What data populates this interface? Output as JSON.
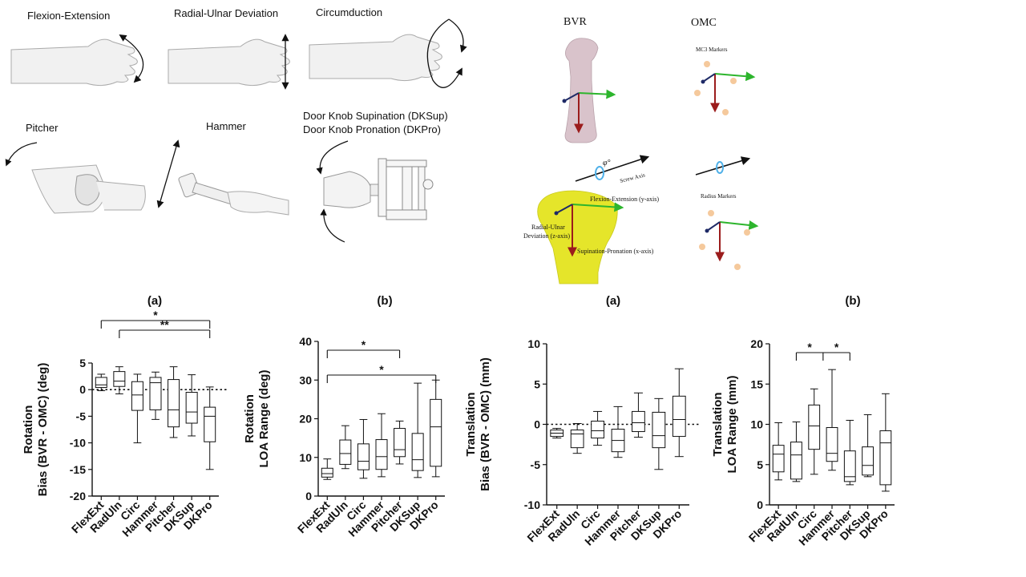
{
  "motions": {
    "flexext": "Flexion-Extension",
    "radul": "Radial-Ulnar Deviation",
    "circ": "Circumduction",
    "pitcher": "Pitcher",
    "hammer": "Hammer",
    "dk_line1": "Door Knob Supination (DKSup)",
    "dk_line2": "Door Knob Pronation (DKPro)"
  },
  "diagram": {
    "bvr": "BVR",
    "omc": "OMC",
    "mc3": "MC3 Markers",
    "radius_markers": "Radius Markers",
    "phi": "φ°",
    "screw_axis": "Screw Axis",
    "flex_axis": "Flexion-Extension (y-axis)",
    "radul_axis_1": "Radial-Ulnar",
    "radul_axis_2": "Deviation (z-axis)",
    "sup_axis": "Supination-Pronation (x-axis)",
    "colors": {
      "bone_mc3": "#d9c3cb",
      "bone_radius": "#e5e52a",
      "marker": "#f5c99c",
      "axis_x": "#9b1c1c",
      "axis_y": "#2db52d",
      "axis_z": "#1e2a66",
      "screw": "#4fb0e8"
    }
  },
  "chart_data": [
    {
      "type": "box",
      "panel": "(a)",
      "ylabel": [
        "Rotation",
        "Bias (BVR - OMC) (deg)"
      ],
      "categories": [
        "FlexExt",
        "RadUln",
        "Circ",
        "Hammer",
        "Pitcher",
        "DKSup",
        "DKPro"
      ],
      "ylim": [
        -20,
        5
      ],
      "yticks": [
        -20,
        -15,
        -10,
        -5,
        0,
        5
      ],
      "reference_line": 0,
      "boxes": [
        {
          "min": -0.2,
          "q1": 0.4,
          "median": 0.9,
          "q3": 2.3,
          "max": 2.9
        },
        {
          "min": -0.8,
          "q1": 0.6,
          "median": 1.6,
          "q3": 3.4,
          "max": 4.3
        },
        {
          "min": -10.0,
          "q1": -3.9,
          "median": -1.0,
          "q3": 1.5,
          "max": 2.9
        },
        {
          "min": -5.6,
          "q1": -3.8,
          "median": 1.3,
          "q3": 2.3,
          "max": 3.3
        },
        {
          "min": -9.0,
          "q1": -7.0,
          "median": -3.8,
          "q3": 1.9,
          "max": 4.3
        },
        {
          "min": -8.7,
          "q1": -6.3,
          "median": -4.2,
          "q3": -0.5,
          "max": 2.8
        },
        {
          "min": -15.0,
          "q1": -9.8,
          "median": -5.0,
          "q3": -3.3,
          "max": 0.5
        }
      ],
      "significance": [
        {
          "from": 0,
          "to": 6,
          "label": "*"
        },
        {
          "from": 1,
          "to": 6,
          "label": "**"
        }
      ]
    },
    {
      "type": "box",
      "panel": "(b)",
      "ylabel": [
        "Rotation",
        "LOA Range (deg)"
      ],
      "categories": [
        "FlexExt",
        "RadUln",
        "Circ",
        "Hammer",
        "Pitcher",
        "DKSup",
        "DKPro"
      ],
      "ylim": [
        0,
        40
      ],
      "yticks": [
        0,
        10,
        20,
        30,
        40
      ],
      "boxes": [
        {
          "min": 4.3,
          "q1": 4.9,
          "median": 5.8,
          "q3": 7.2,
          "max": 9.6
        },
        {
          "min": 7.1,
          "q1": 8.2,
          "median": 11.0,
          "q3": 14.5,
          "max": 18.2
        },
        {
          "min": 4.6,
          "q1": 6.8,
          "median": 9.0,
          "q3": 13.5,
          "max": 19.8
        },
        {
          "min": 5.0,
          "q1": 6.9,
          "median": 10.2,
          "q3": 14.6,
          "max": 21.3
        },
        {
          "min": 8.3,
          "q1": 10.2,
          "median": 12.0,
          "q3": 17.5,
          "max": 19.4
        },
        {
          "min": 4.8,
          "q1": 6.6,
          "median": 9.4,
          "q3": 16.2,
          "max": 29.2
        },
        {
          "min": 5.0,
          "q1": 7.7,
          "median": 17.9,
          "q3": 25.0,
          "max": 30.0
        }
      ],
      "significance": [
        {
          "from": 0,
          "to": 4,
          "label": "*"
        },
        {
          "from": 0,
          "to": 6,
          "label": "*"
        }
      ]
    },
    {
      "type": "box",
      "panel": "(a)",
      "ylabel": [
        "Translation",
        "Bias (BVR - OMC) (mm)"
      ],
      "categories": [
        "FlexExt",
        "RadUln",
        "Circ",
        "Hammer",
        "Pitcher",
        "DKSup",
        "DKPro"
      ],
      "ylim": [
        -10,
        10
      ],
      "yticks": [
        -10,
        -5,
        0,
        5,
        10
      ],
      "reference_line": 0,
      "boxes": [
        {
          "min": -1.7,
          "q1": -1.5,
          "median": -1.1,
          "q3": -0.7,
          "max": -0.5
        },
        {
          "min": -3.6,
          "q1": -2.9,
          "median": -1.2,
          "q3": -0.7,
          "max": 0.1
        },
        {
          "min": -2.6,
          "q1": -1.7,
          "median": -0.8,
          "q3": 0.4,
          "max": 1.6
        },
        {
          "min": -4.1,
          "q1": -3.4,
          "median": -2.0,
          "q3": -0.6,
          "max": 2.2
        },
        {
          "min": -1.6,
          "q1": -0.9,
          "median": 0.2,
          "q3": 1.6,
          "max": 3.9
        },
        {
          "min": -5.6,
          "q1": -2.9,
          "median": -1.4,
          "q3": 1.5,
          "max": 3.2
        },
        {
          "min": -4.0,
          "q1": -1.5,
          "median": 0.6,
          "q3": 3.5,
          "max": 6.9
        }
      ]
    },
    {
      "type": "box",
      "panel": "(b)",
      "ylabel": [
        "Translation",
        "LOA Range (mm)"
      ],
      "categories": [
        "FlexExt",
        "RadUln",
        "Circ",
        "Hammer",
        "Pitcher",
        "DKSup",
        "DKPro"
      ],
      "ylim": [
        0,
        20
      ],
      "yticks": [
        0,
        5,
        10,
        15,
        20
      ],
      "boxes": [
        {
          "min": 3.1,
          "q1": 4.1,
          "median": 6.3,
          "q3": 7.4,
          "max": 10.2
        },
        {
          "min": 2.9,
          "q1": 3.2,
          "median": 6.2,
          "q3": 7.8,
          "max": 10.3
        },
        {
          "min": 3.8,
          "q1": 6.9,
          "median": 9.8,
          "q3": 12.4,
          "max": 14.4
        },
        {
          "min": 4.3,
          "q1": 5.4,
          "median": 6.4,
          "q3": 9.6,
          "max": 16.8
        },
        {
          "min": 2.5,
          "q1": 2.9,
          "median": 3.5,
          "q3": 6.7,
          "max": 10.5
        },
        {
          "min": 3.5,
          "q1": 3.7,
          "median": 4.9,
          "q3": 7.2,
          "max": 11.2
        },
        {
          "min": 1.7,
          "q1": 2.5,
          "median": 7.7,
          "q3": 9.2,
          "max": 13.8
        }
      ],
      "significance": [
        {
          "from": 1,
          "to": 4,
          "label": "*",
          "split_at": 2.5
        }
      ]
    }
  ]
}
